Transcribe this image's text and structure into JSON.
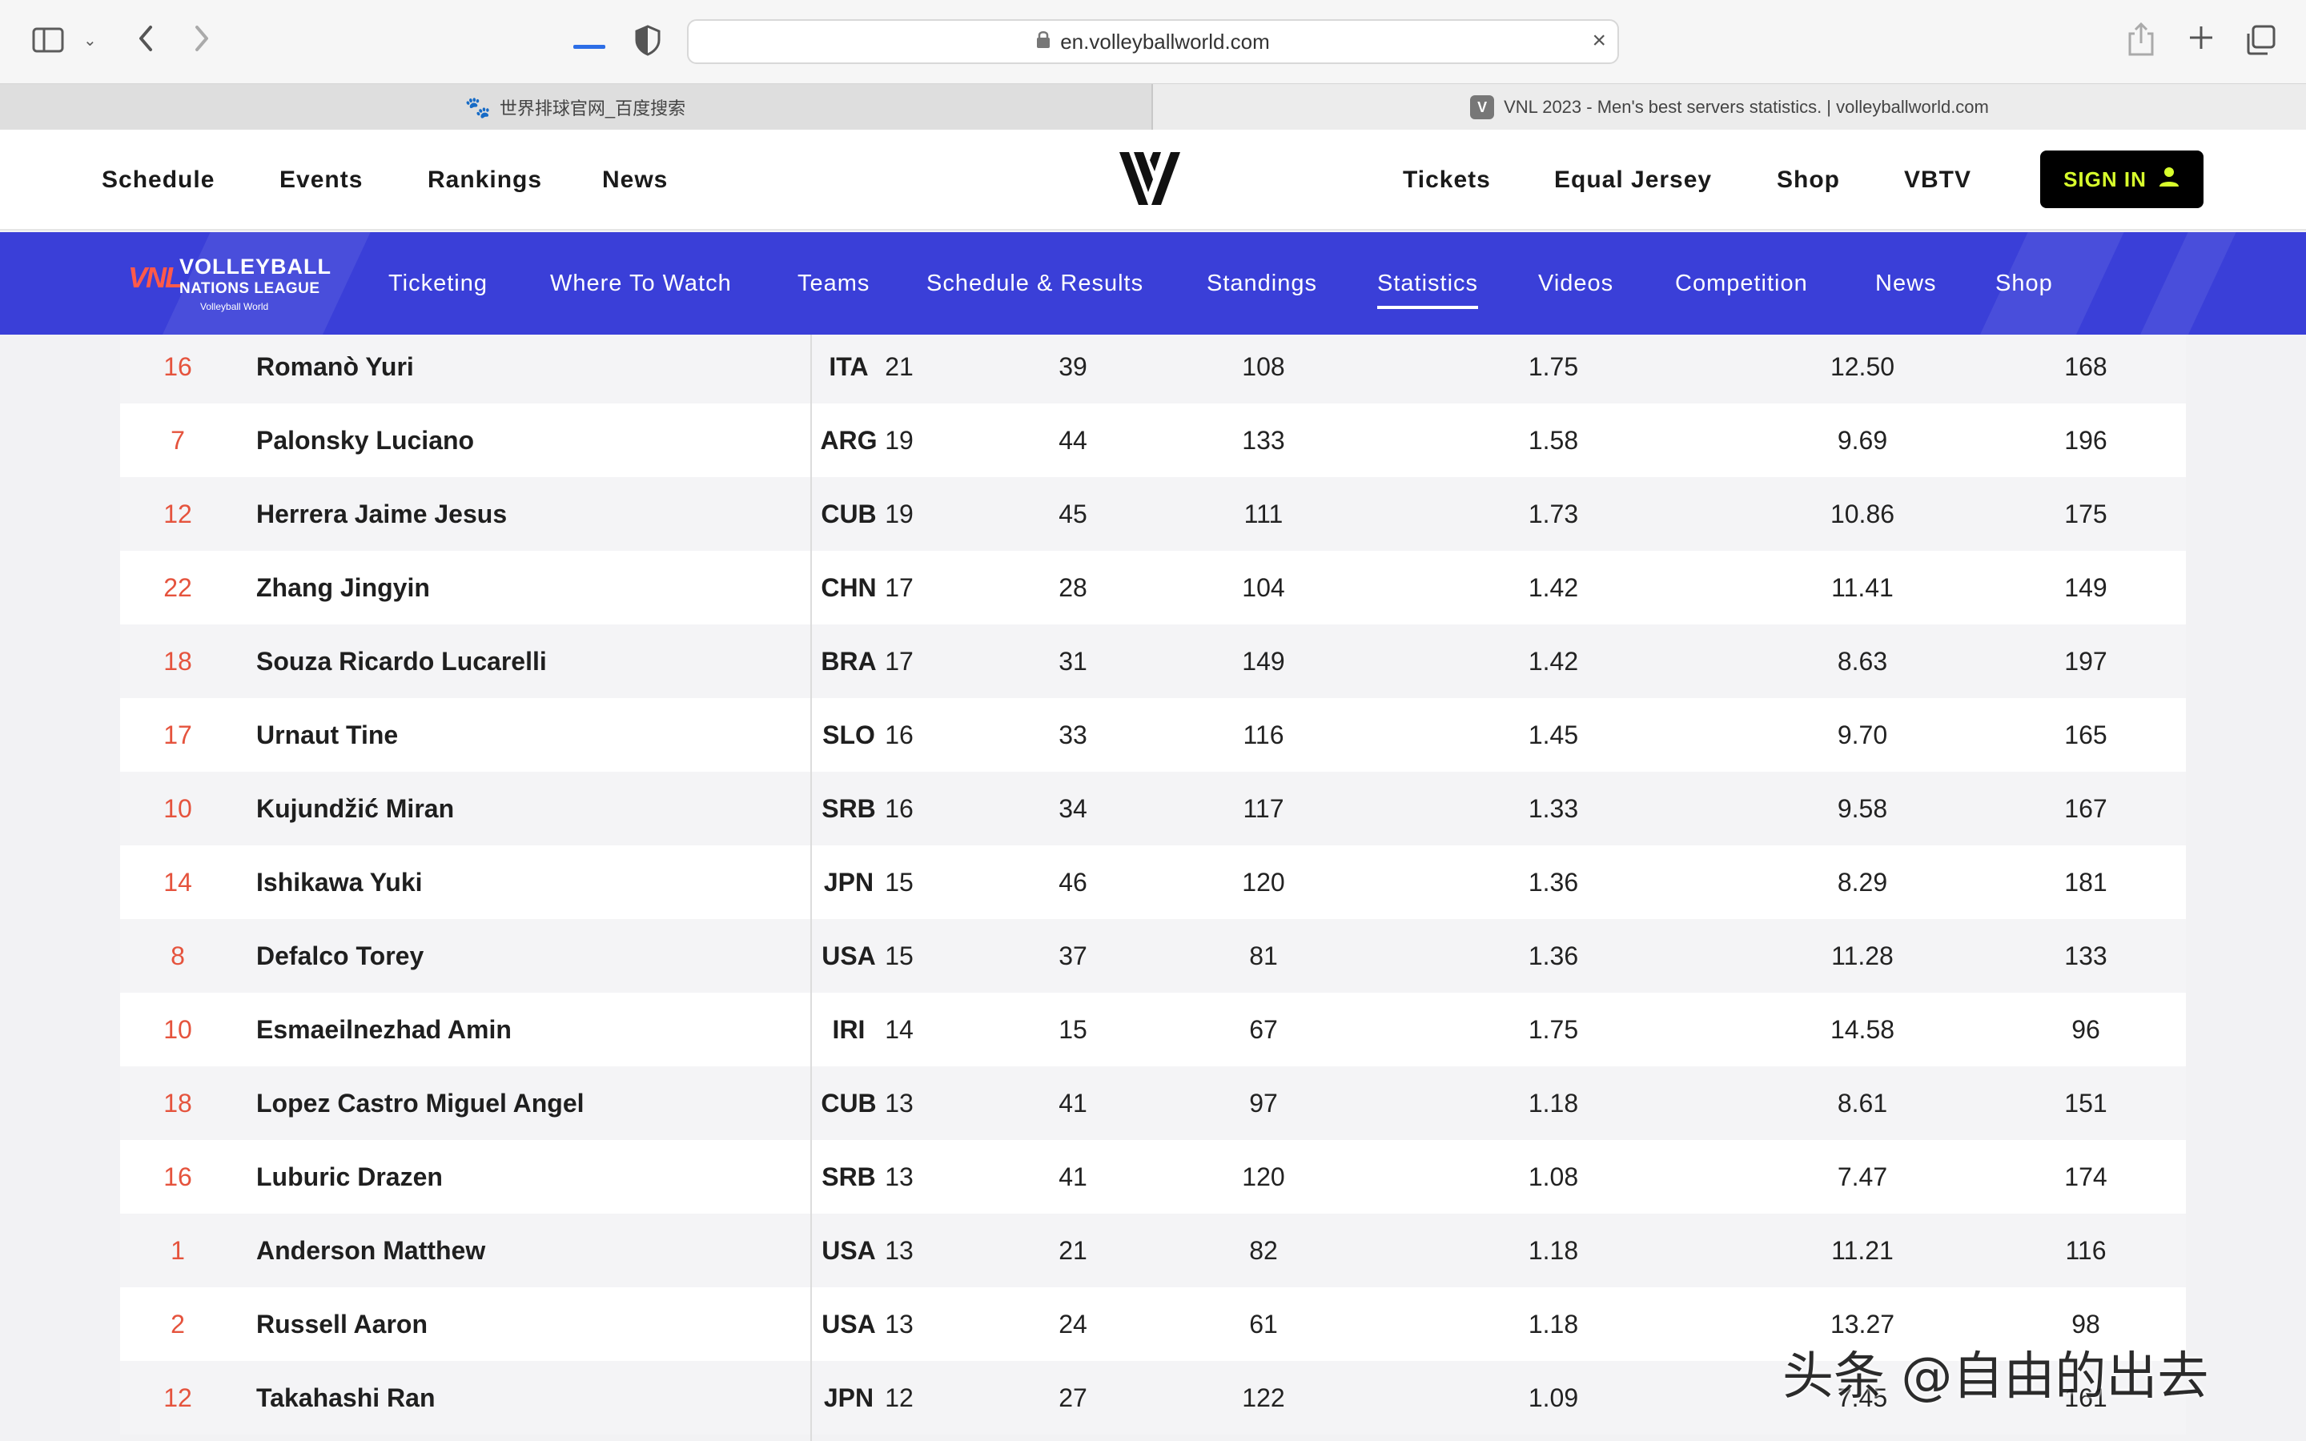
{
  "browser": {
    "url": "en.volleyballworld.com",
    "tabs": [
      {
        "title": "世界排球官网_百度搜索",
        "icon": "baidu-paw-icon"
      },
      {
        "title": "VNL 2023 - Men's best servers statistics. | volleyballworld.com",
        "icon": "v-favicon-icon",
        "favicon_letter": "V"
      }
    ]
  },
  "header": {
    "left_nav": [
      "Schedule",
      "Events",
      "Rankings",
      "News"
    ],
    "right_nav": [
      "Tickets",
      "Equal Jersey",
      "Shop",
      "VBTV"
    ],
    "sign_in": "SIGN IN"
  },
  "vnl": {
    "logo_mark": "VNL",
    "logo_line1": "VOLLEYBALL",
    "logo_line2": "NATIONS LEAGUE",
    "logo_line3": "Volleyball World",
    "nav": [
      "Ticketing",
      "Where To Watch",
      "Teams",
      "Schedule & Results",
      "Standings",
      "Statistics",
      "Videos",
      "Competition",
      "News",
      "Shop"
    ],
    "active": "Statistics"
  },
  "table": {
    "rows": [
      {
        "num": "16",
        "name": "Romanò Yuri",
        "team": "ITA",
        "v1": "21",
        "v2": "39",
        "v3": "108",
        "v4": "1.75",
        "v5": "12.50",
        "v6": "168"
      },
      {
        "num": "7",
        "name": "Palonsky Luciano",
        "team": "ARG",
        "v1": "19",
        "v2": "44",
        "v3": "133",
        "v4": "1.58",
        "v5": "9.69",
        "v6": "196"
      },
      {
        "num": "12",
        "name": "Herrera Jaime Jesus",
        "team": "CUB",
        "v1": "19",
        "v2": "45",
        "v3": "111",
        "v4": "1.73",
        "v5": "10.86",
        "v6": "175"
      },
      {
        "num": "22",
        "name": "Zhang Jingyin",
        "team": "CHN",
        "v1": "17",
        "v2": "28",
        "v3": "104",
        "v4": "1.42",
        "v5": "11.41",
        "v6": "149"
      },
      {
        "num": "18",
        "name": "Souza Ricardo Lucarelli",
        "team": "BRA",
        "v1": "17",
        "v2": "31",
        "v3": "149",
        "v4": "1.42",
        "v5": "8.63",
        "v6": "197"
      },
      {
        "num": "17",
        "name": "Urnaut Tine",
        "team": "SLO",
        "v1": "16",
        "v2": "33",
        "v3": "116",
        "v4": "1.45",
        "v5": "9.70",
        "v6": "165"
      },
      {
        "num": "10",
        "name": "Kujundžić Miran",
        "team": "SRB",
        "v1": "16",
        "v2": "34",
        "v3": "117",
        "v4": "1.33",
        "v5": "9.58",
        "v6": "167"
      },
      {
        "num": "14",
        "name": "Ishikawa Yuki",
        "team": "JPN",
        "v1": "15",
        "v2": "46",
        "v3": "120",
        "v4": "1.36",
        "v5": "8.29",
        "v6": "181"
      },
      {
        "num": "8",
        "name": "Defalco Torey",
        "team": "USA",
        "v1": "15",
        "v2": "37",
        "v3": "81",
        "v4": "1.36",
        "v5": "11.28",
        "v6": "133"
      },
      {
        "num": "10",
        "name": "Esmaeilnezhad Amin",
        "team": "IRI",
        "v1": "14",
        "v2": "15",
        "v3": "67",
        "v4": "1.75",
        "v5": "14.58",
        "v6": "96"
      },
      {
        "num": "18",
        "name": "Lopez Castro Miguel Angel",
        "team": "CUB",
        "v1": "13",
        "v2": "41",
        "v3": "97",
        "v4": "1.18",
        "v5": "8.61",
        "v6": "151"
      },
      {
        "num": "16",
        "name": "Luburic Drazen",
        "team": "SRB",
        "v1": "13",
        "v2": "41",
        "v3": "120",
        "v4": "1.08",
        "v5": "7.47",
        "v6": "174"
      },
      {
        "num": "1",
        "name": "Anderson Matthew",
        "team": "USA",
        "v1": "13",
        "v2": "21",
        "v3": "82",
        "v4": "1.18",
        "v5": "11.21",
        "v6": "116"
      },
      {
        "num": "2",
        "name": "Russell Aaron",
        "team": "USA",
        "v1": "13",
        "v2": "24",
        "v3": "61",
        "v4": "1.18",
        "v5": "13.27",
        "v6": "98"
      },
      {
        "num": "12",
        "name": "Takahashi Ran",
        "team": "JPN",
        "v1": "12",
        "v2": "27",
        "v3": "122",
        "v4": "1.09",
        "v5": "7.45",
        "v6": "161"
      }
    ]
  },
  "watermark": "头条 @自由的出去",
  "colors": {
    "vnl_blue": "#3a3fd8",
    "number_red": "#e5533d",
    "signin_bg": "#000000",
    "signin_text": "#d8ff2c"
  }
}
